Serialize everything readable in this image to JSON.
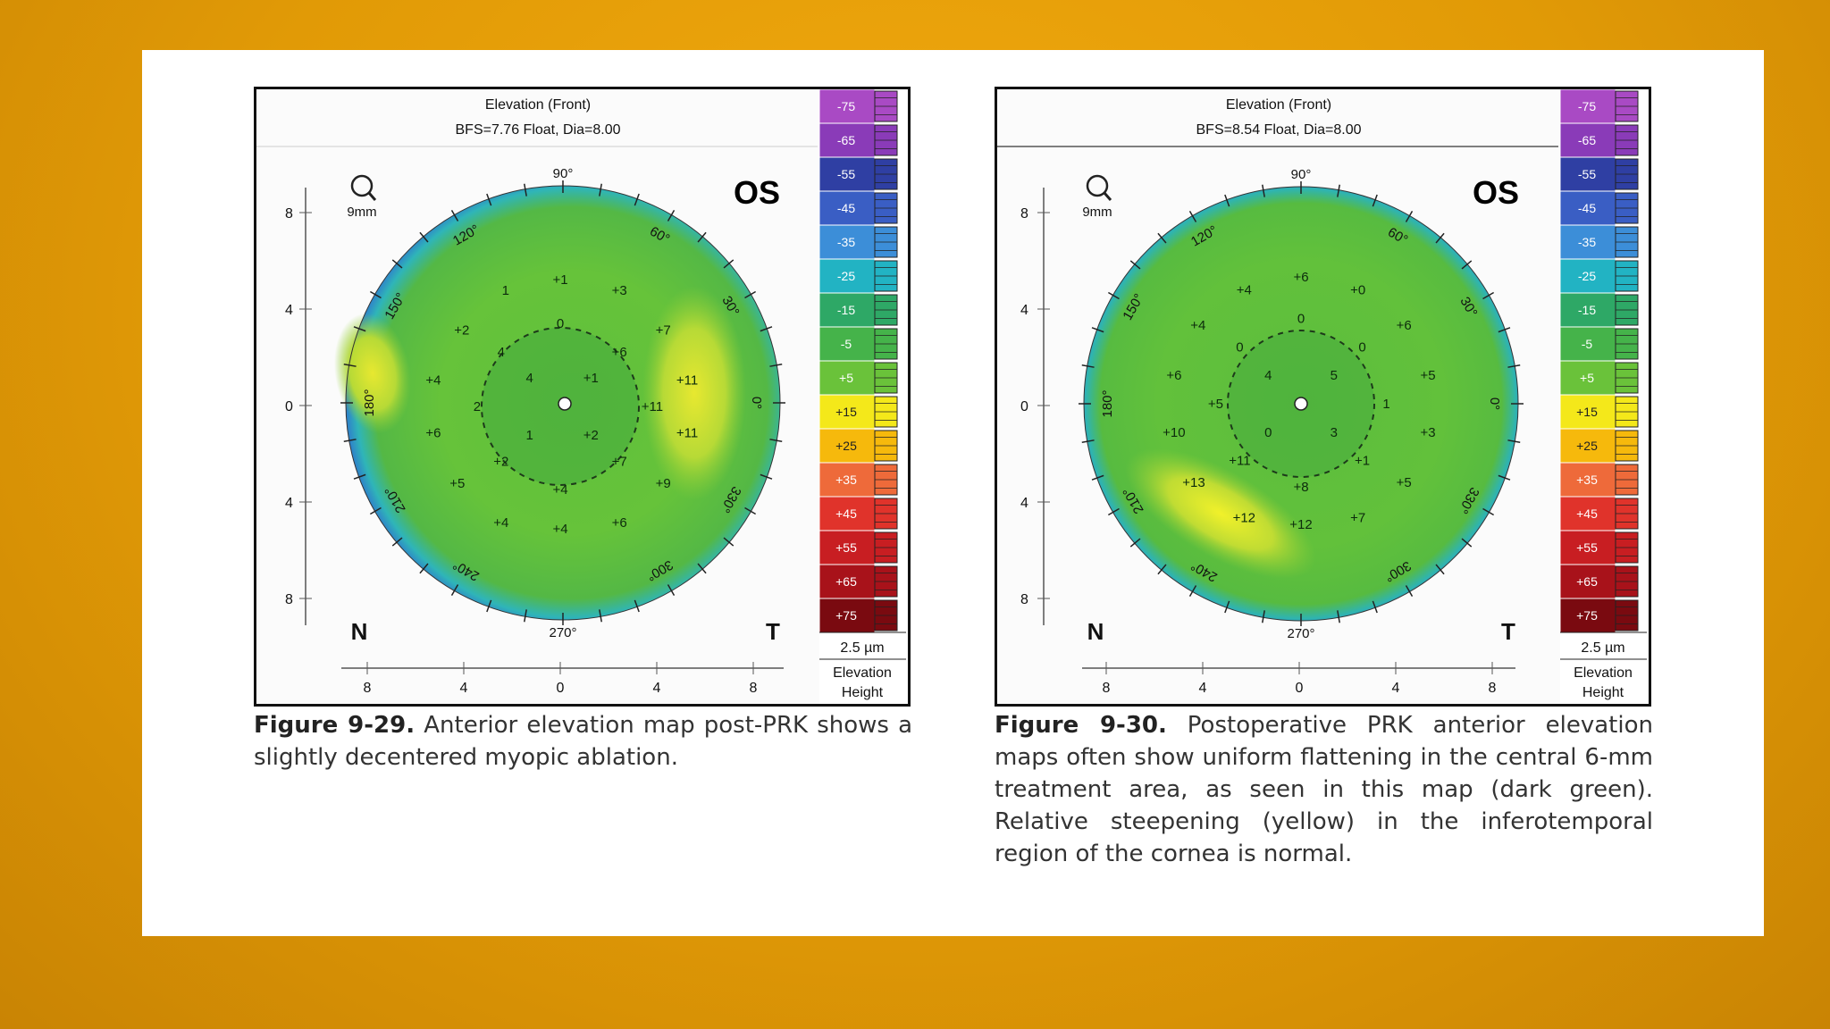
{
  "colors": {
    "background": "#e39d06",
    "slide": "#ffffff"
  },
  "scale_colors": [
    "#a94ac4",
    "#8a3bb8",
    "#2f3fa3",
    "#3a5ec4",
    "#3c8ed8",
    "#22b3c3",
    "#2ea866",
    "#45b34a",
    "#6ac23a",
    "#f4e81a",
    "#f6b90c",
    "#ee6a3a",
    "#e0332b",
    "#c81e22",
    "#a8121a",
    "#7a0a10"
  ],
  "figures": [
    {
      "title": "Elevation (Front)",
      "subtitle": "BFS=7.76 Float, Dia=8.00",
      "eye": "OS",
      "nasal": "N",
      "temporal": "T",
      "magnifier": "9mm",
      "scale_values": [
        "-75",
        "-65",
        "-55",
        "-45",
        "-35",
        "-25",
        "-15",
        "-5",
        "+5",
        "+15",
        "+25",
        "+35",
        "+45",
        "+55",
        "+65",
        "+75"
      ],
      "scale_step": "2.5 µm",
      "scale_label": "Elevation",
      "scale_sub": "Height",
      "axis_ticks": [
        "8",
        "4",
        "0",
        "4",
        "8"
      ],
      "angles": [
        "90°",
        "60°",
        "30°",
        "0°",
        "330°",
        "300°",
        "270°",
        "240°",
        "210°",
        "180°",
        "150°",
        "120°"
      ],
      "values": [
        {
          "t": "+1",
          "x": 0,
          "y": 5.8
        },
        {
          "t": "1",
          "x": -2.5,
          "y": 5.3
        },
        {
          "t": "+3",
          "x": 2.7,
          "y": 5.3
        },
        {
          "t": "+2",
          "x": -4.5,
          "y": 3.5
        },
        {
          "t": "0",
          "x": 0,
          "y": 3.8
        },
        {
          "t": "+7",
          "x": 4.7,
          "y": 3.5
        },
        {
          "t": "4",
          "x": -2.7,
          "y": 2.5
        },
        {
          "t": "+6",
          "x": 2.7,
          "y": 2.5
        },
        {
          "t": "+4",
          "x": -5.8,
          "y": 1.2
        },
        {
          "t": "4",
          "x": -1.4,
          "y": 1.3
        },
        {
          "t": "+1",
          "x": 1.4,
          "y": 1.3
        },
        {
          "t": "+11",
          "x": 5.8,
          "y": 1.2
        },
        {
          "t": "2",
          "x": -3.8,
          "y": 0
        },
        {
          "t": "+11",
          "x": 4.2,
          "y": 0
        },
        {
          "t": "+6",
          "x": -5.8,
          "y": -1.2
        },
        {
          "t": "1",
          "x": -1.4,
          "y": -1.3
        },
        {
          "t": "+2",
          "x": 1.4,
          "y": -1.3
        },
        {
          "t": "+11",
          "x": 5.8,
          "y": -1.2
        },
        {
          "t": "+2",
          "x": -2.7,
          "y": -2.5
        },
        {
          "t": "+7",
          "x": 2.7,
          "y": -2.5
        },
        {
          "t": "+5",
          "x": -4.7,
          "y": -3.5
        },
        {
          "t": "+4",
          "x": 0,
          "y": -3.8
        },
        {
          "t": "+9",
          "x": 4.7,
          "y": -3.5
        },
        {
          "t": "+4",
          "x": -2.7,
          "y": -5.3
        },
        {
          "t": "+4",
          "x": 0,
          "y": -5.6
        },
        {
          "t": "+6",
          "x": 2.7,
          "y": -5.3
        }
      ]
    },
    {
      "title": "Elevation (Front)",
      "subtitle": "BFS=8.54 Float, Dia=8.00",
      "eye": "OS",
      "nasal": "N",
      "temporal": "T",
      "magnifier": "9mm",
      "scale_values": [
        "-75",
        "-65",
        "-55",
        "-45",
        "-35",
        "-25",
        "-15",
        "-5",
        "+5",
        "+15",
        "+25",
        "+35",
        "+45",
        "+55",
        "+65",
        "+75"
      ],
      "scale_step": "2.5 µm",
      "scale_label": "Elevation",
      "scale_sub": "Height",
      "axis_ticks": [
        "8",
        "4",
        "0",
        "4",
        "8"
      ],
      "angles": [
        "90°",
        "60°",
        "30°",
        "0°",
        "330°",
        "300°",
        "270°",
        "240°",
        "210°",
        "180°",
        "150°",
        "120°"
      ],
      "values": [
        {
          "t": "+6",
          "x": 0,
          "y": 5.8
        },
        {
          "t": "+4",
          "x": -2.6,
          "y": 5.2
        },
        {
          "t": "+0",
          "x": 2.6,
          "y": 5.2
        },
        {
          "t": "+4",
          "x": -4.7,
          "y": 3.6
        },
        {
          "t": "0",
          "x": 0,
          "y": 3.9
        },
        {
          "t": "+6",
          "x": 4.7,
          "y": 3.6
        },
        {
          "t": "0",
          "x": -2.8,
          "y": 2.6
        },
        {
          "t": "0",
          "x": 2.8,
          "y": 2.6
        },
        {
          "t": "+6",
          "x": -5.8,
          "y": 1.3
        },
        {
          "t": "4",
          "x": -1.5,
          "y": 1.3
        },
        {
          "t": "5",
          "x": 1.5,
          "y": 1.3
        },
        {
          "t": "+5",
          "x": 5.8,
          "y": 1.3
        },
        {
          "t": "+5",
          "x": -3.9,
          "y": 0
        },
        {
          "t": "1",
          "x": 3.9,
          "y": 0
        },
        {
          "t": "+10",
          "x": -5.8,
          "y": -1.3
        },
        {
          "t": "0",
          "x": -1.5,
          "y": -1.3
        },
        {
          "t": "3",
          "x": 1.5,
          "y": -1.3
        },
        {
          "t": "+3",
          "x": 5.8,
          "y": -1.3
        },
        {
          "t": "+11",
          "x": -2.8,
          "y": -2.6
        },
        {
          "t": "+1",
          "x": 2.8,
          "y": -2.6
        },
        {
          "t": "+13",
          "x": -4.9,
          "y": -3.6
        },
        {
          "t": "+8",
          "x": 0,
          "y": -3.8
        },
        {
          "t": "+5",
          "x": 4.7,
          "y": -3.6
        },
        {
          "t": "+12",
          "x": -2.6,
          "y": -5.2
        },
        {
          "t": "+12",
          "x": 0,
          "y": -5.5
        },
        {
          "t": "+7",
          "x": 2.6,
          "y": -5.2
        }
      ]
    }
  ],
  "captions": [
    {
      "label": "Figure 9-29.",
      "text": "Anterior elevation map post-PRK shows a slightly decentered myopic ablation."
    },
    {
      "label": "Figure 9-30.",
      "text": "Postoperative PRK anterior elevation maps often show uniform flattening in the central 6-mm treatment area, as seen in this map (dark green). Relative steepening (yellow) in the inferotemporal region of the cornea is normal."
    }
  ]
}
